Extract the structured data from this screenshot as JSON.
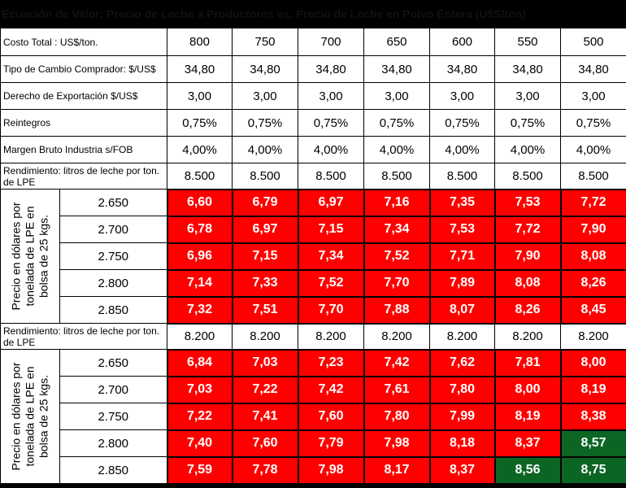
{
  "title": "Ecuación de Valor: Precio de Leche a Productores vs. Precio de Leche en Polvo Entera (U$S/ton)",
  "columns": [
    "800",
    "750",
    "700",
    "650",
    "600",
    "550",
    "500"
  ],
  "header_rows": [
    {
      "label": "Costo Total : US$/ton.",
      "values": [
        "800",
        "750",
        "700",
        "650",
        "600",
        "550",
        "500"
      ]
    },
    {
      "label": "Tipo de Cambio Comprador: $/US$",
      "values": [
        "34,80",
        "34,80",
        "34,80",
        "34,80",
        "34,80",
        "34,80",
        "34,80"
      ]
    },
    {
      "label": "Derecho de Exportación $/US$",
      "values": [
        "3,00",
        "3,00",
        "3,00",
        "3,00",
        "3,00",
        "3,00",
        "3,00"
      ]
    },
    {
      "label": "Reintegros",
      "values": [
        "0,75%",
        "0,75%",
        "0,75%",
        "0,75%",
        "0,75%",
        "0,75%",
        "0,75%"
      ]
    },
    {
      "label": "Margen Bruto Industria s/FOB",
      "values": [
        "4,00%",
        "4,00%",
        "4,00%",
        "4,00%",
        "4,00%",
        "4,00%",
        "4,00%"
      ]
    }
  ],
  "sections": [
    {
      "rendimiento_label": "Rendimiento: litros de leche por ton. de LPE",
      "rendimiento_values": [
        "8.500",
        "8.500",
        "8.500",
        "8.500",
        "8.500",
        "8.500",
        "8.500"
      ],
      "vertical_label": "Precio en dólares por tonelada de LPE en bolsa de 25 kgs.",
      "rows": [
        {
          "price": "2.650",
          "values": [
            "6,60",
            "6,79",
            "6,97",
            "7,16",
            "7,35",
            "7,53",
            "7,72"
          ],
          "colors": [
            "red",
            "red",
            "red",
            "red",
            "red",
            "red",
            "red"
          ]
        },
        {
          "price": "2.700",
          "values": [
            "6,78",
            "6,97",
            "7,15",
            "7,34",
            "7,53",
            "7,72",
            "7,90"
          ],
          "colors": [
            "red",
            "red",
            "red",
            "red",
            "red",
            "red",
            "red"
          ]
        },
        {
          "price": "2.750",
          "values": [
            "6,96",
            "7,15",
            "7,34",
            "7,52",
            "7,71",
            "7,90",
            "8,08"
          ],
          "colors": [
            "red",
            "red",
            "red",
            "red",
            "red",
            "red",
            "red"
          ]
        },
        {
          "price": "2.800",
          "values": [
            "7,14",
            "7,33",
            "7,52",
            "7,70",
            "7,89",
            "8,08",
            "8,26"
          ],
          "colors": [
            "red",
            "red",
            "red",
            "red",
            "red",
            "red",
            "red"
          ]
        },
        {
          "price": "2.850",
          "values": [
            "7,32",
            "7,51",
            "7,70",
            "7,88",
            "8,07",
            "8,26",
            "8,45"
          ],
          "colors": [
            "red",
            "red",
            "red",
            "red",
            "red",
            "red",
            "red"
          ]
        }
      ]
    },
    {
      "rendimiento_label": "Rendimiento: litros de leche por ton. de LPE",
      "rendimiento_values": [
        "8.200",
        "8.200",
        "8.200",
        "8.200",
        "8.200",
        "8.200",
        "8.200"
      ],
      "vertical_label": "Precio en dólares por tonelada de LPE en bolsa de 25 kgs.",
      "rows": [
        {
          "price": "2.650",
          "values": [
            "6,84",
            "7,03",
            "7,23",
            "7,42",
            "7,62",
            "7,81",
            "8,00"
          ],
          "colors": [
            "red",
            "red",
            "red",
            "red",
            "red",
            "red",
            "red"
          ]
        },
        {
          "price": "2.700",
          "values": [
            "7,03",
            "7,22",
            "7,42",
            "7,61",
            "7,80",
            "8,00",
            "8,19"
          ],
          "colors": [
            "red",
            "red",
            "red",
            "red",
            "red",
            "red",
            "red"
          ]
        },
        {
          "price": "2.750",
          "values": [
            "7,22",
            "7,41",
            "7,60",
            "7,80",
            "7,99",
            "8,19",
            "8,38"
          ],
          "colors": [
            "red",
            "red",
            "red",
            "red",
            "red",
            "red",
            "red"
          ]
        },
        {
          "price": "2.800",
          "values": [
            "7,40",
            "7,60",
            "7,79",
            "7,98",
            "8,18",
            "8,37",
            "8,57"
          ],
          "colors": [
            "red",
            "red",
            "red",
            "red",
            "red",
            "red",
            "green"
          ]
        },
        {
          "price": "2.850",
          "values": [
            "7,59",
            "7,78",
            "7,98",
            "8,17",
            "8,37",
            "8,56",
            "8,75"
          ],
          "colors": [
            "red",
            "red",
            "red",
            "red",
            "red",
            "green",
            "green"
          ]
        }
      ]
    }
  ],
  "colors": {
    "red": "#ff0000",
    "green": "#0b6623"
  }
}
